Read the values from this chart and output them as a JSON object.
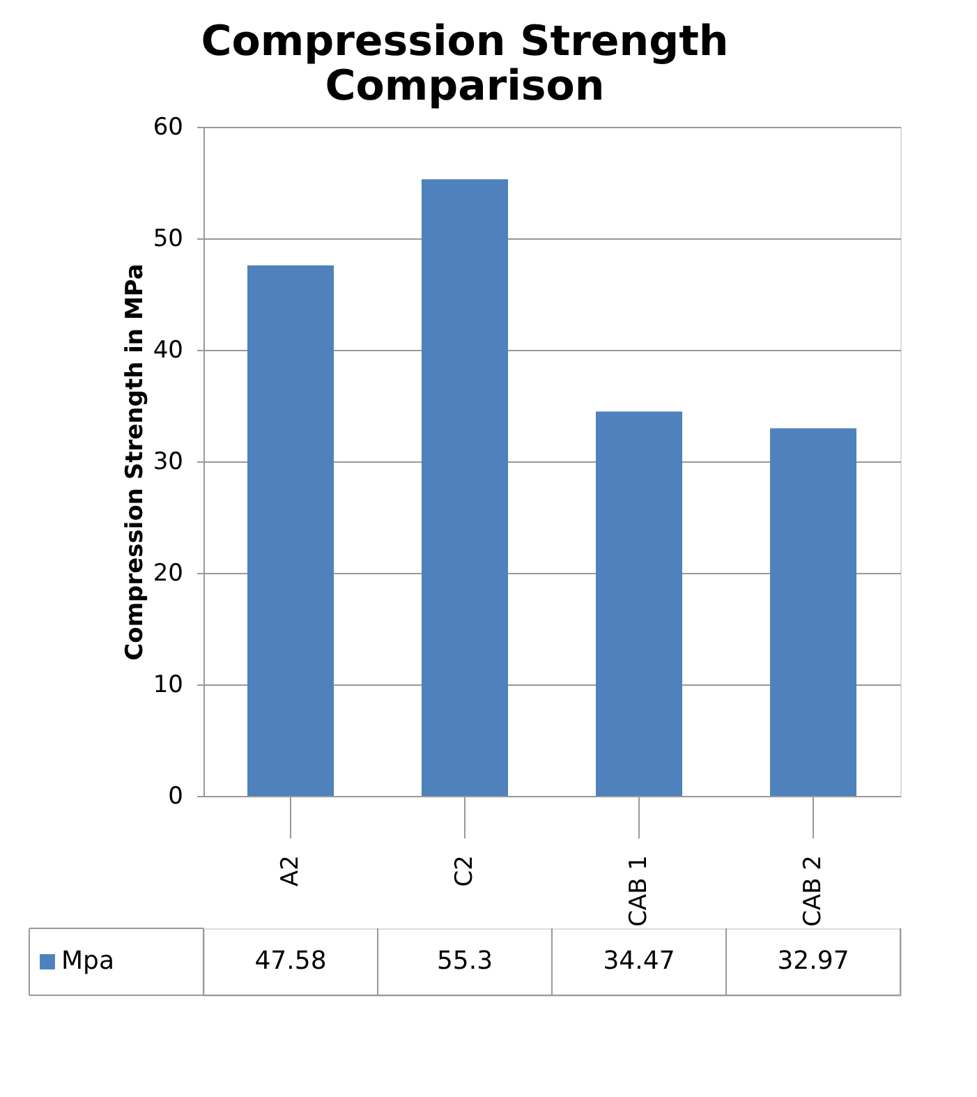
{
  "chart_data": {
    "type": "bar",
    "title": "Compression Strength Comparison",
    "ylabel": "Compression Strength in MPa",
    "categories": [
      "A2",
      "C2",
      "CAB 1",
      "CAB 2"
    ],
    "series": [
      {
        "name": "Mpa",
        "color": "#4f81bd",
        "values": [
          47.58,
          55.3,
          34.47,
          32.97
        ]
      }
    ],
    "ylim": [
      0,
      60
    ],
    "yticks": [
      0,
      10,
      20,
      30,
      40,
      50,
      60
    ],
    "grid": "y",
    "legend": "bottom left",
    "data_labels": true
  }
}
